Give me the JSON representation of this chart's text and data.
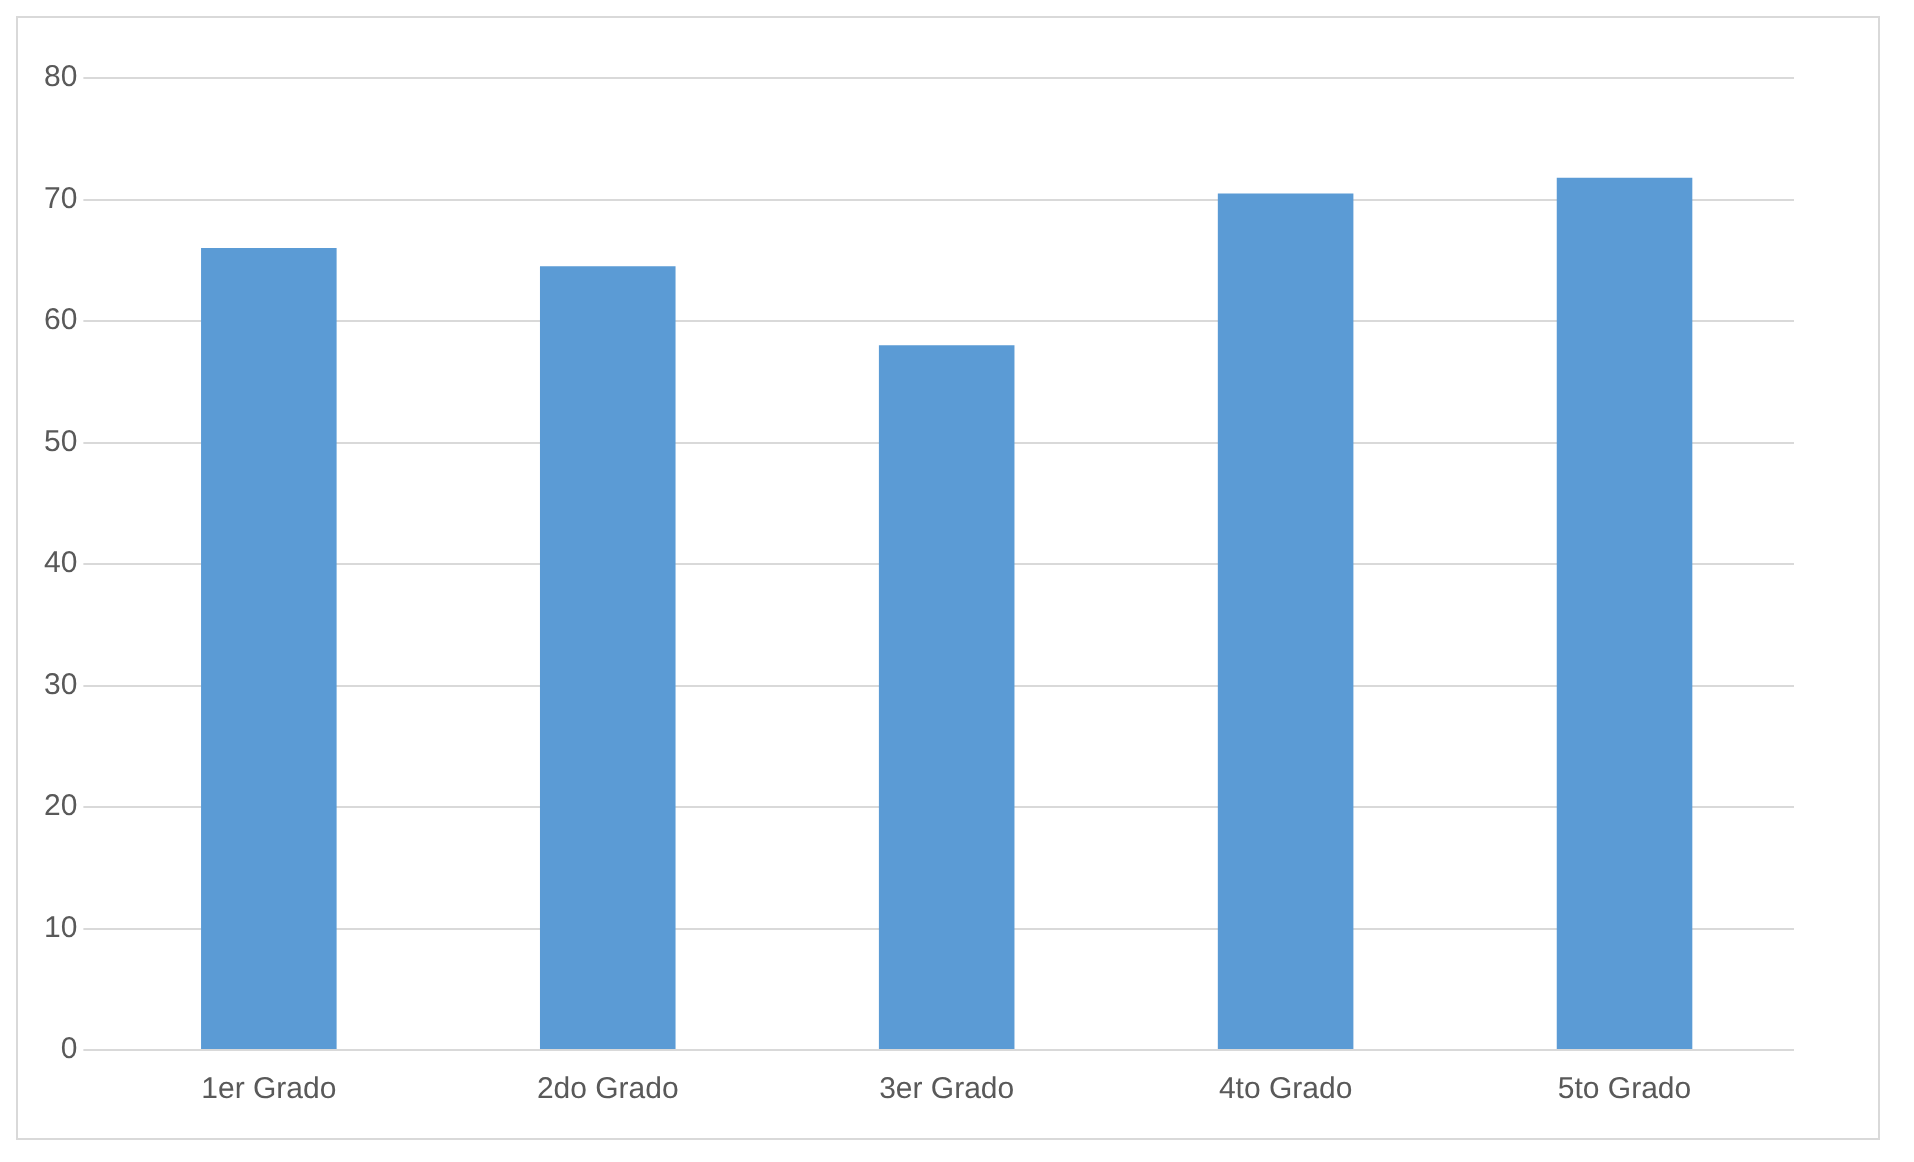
{
  "chart_data": {
    "type": "bar",
    "categories": [
      "1er Grado",
      "2do Grado",
      "3er Grado",
      "4to Grado",
      "5to Grado"
    ],
    "values": [
      66,
      64.5,
      58,
      70.5,
      71.8
    ],
    "color": "#5b9bd5",
    "ylim": [
      0,
      80
    ],
    "yticks": [
      0,
      10,
      20,
      30,
      40,
      50,
      60,
      70,
      80
    ],
    "grid": "y",
    "legend": false
  }
}
